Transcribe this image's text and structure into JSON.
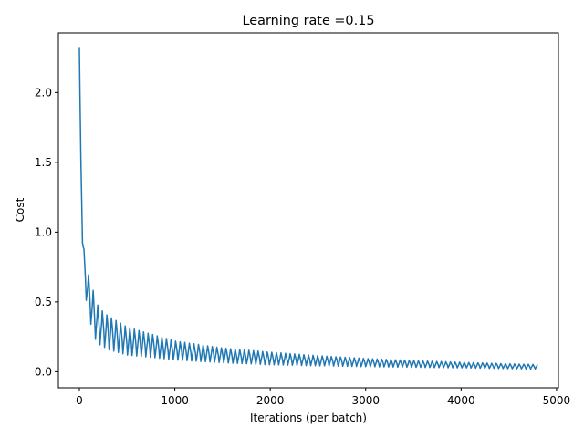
{
  "chart_data": {
    "type": "line",
    "title": "Learning rate =0.15",
    "xlabel": "Iterations (per batch)",
    "ylabel": "Cost",
    "xlim": [
      -220,
      5020
    ],
    "ylim": [
      -0.115,
      2.427
    ],
    "xticks": [
      0,
      1000,
      2000,
      3000,
      4000,
      5000
    ],
    "xtick_labels": [
      "0",
      "1000",
      "2000",
      "3000",
      "4000",
      "5000"
    ],
    "yticks": [
      0.0,
      0.5,
      1.0,
      1.5,
      2.0
    ],
    "ytick_labels": [
      "0.0",
      "0.5",
      "1.0",
      "1.5",
      "2.0"
    ],
    "grid": false,
    "series": [
      {
        "color": "#1f77b4",
        "x_range": [
          0,
          4800
        ],
        "envelope_upper": [
          [
            0,
            2.32
          ],
          [
            20,
            1.3
          ],
          [
            50,
            0.85
          ],
          [
            100,
            0.68
          ],
          [
            200,
            0.46
          ],
          [
            300,
            0.4
          ],
          [
            500,
            0.32
          ],
          [
            800,
            0.26
          ],
          [
            1000,
            0.22
          ],
          [
            1500,
            0.17
          ],
          [
            2000,
            0.14
          ],
          [
            2500,
            0.115
          ],
          [
            3000,
            0.095
          ],
          [
            3500,
            0.08
          ],
          [
            4000,
            0.068
          ],
          [
            4500,
            0.057
          ],
          [
            4800,
            0.052
          ]
        ],
        "envelope_lower": [
          [
            0,
            2.32
          ],
          [
            20,
            1.0
          ],
          [
            50,
            0.6
          ],
          [
            100,
            0.4
          ],
          [
            150,
            0.25
          ],
          [
            200,
            0.2
          ],
          [
            300,
            0.16
          ],
          [
            500,
            0.12
          ],
          [
            800,
            0.1
          ],
          [
            1000,
            0.085
          ],
          [
            1500,
            0.065
          ],
          [
            2000,
            0.05
          ],
          [
            2500,
            0.043
          ],
          [
            3000,
            0.037
          ],
          [
            3500,
            0.032
          ],
          [
            4000,
            0.028
          ],
          [
            4500,
            0.022
          ],
          [
            4800,
            0.02
          ]
        ]
      }
    ]
  }
}
